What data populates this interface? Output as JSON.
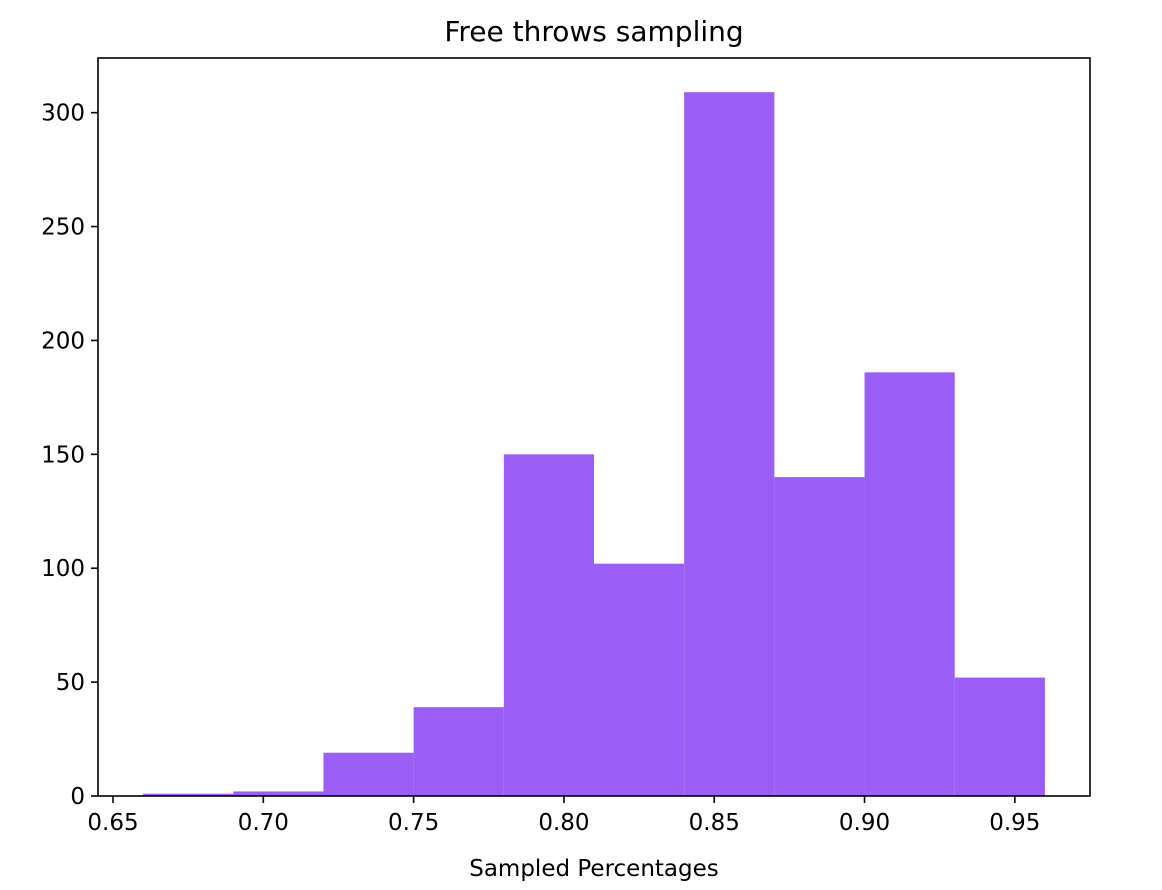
{
  "chart_data": {
    "type": "bar",
    "title": "Free throws sampling",
    "xlabel": "Sampled Percentages",
    "ylabel": "",
    "bins": [
      {
        "start": 0.66,
        "end": 0.69,
        "count": 1
      },
      {
        "start": 0.69,
        "end": 0.72,
        "count": 2
      },
      {
        "start": 0.72,
        "end": 0.75,
        "count": 19
      },
      {
        "start": 0.75,
        "end": 0.78,
        "count": 39
      },
      {
        "start": 0.78,
        "end": 0.81,
        "count": 150
      },
      {
        "start": 0.81,
        "end": 0.84,
        "count": 102
      },
      {
        "start": 0.84,
        "end": 0.87,
        "count": 309
      },
      {
        "start": 0.87,
        "end": 0.9,
        "count": 140
      },
      {
        "start": 0.9,
        "end": 0.93,
        "count": 186
      },
      {
        "start": 0.93,
        "end": 0.96,
        "count": 52
      }
    ],
    "xlim": [
      0.645,
      0.975
    ],
    "ylim": [
      0,
      324
    ],
    "xticks": [
      0.65,
      0.7,
      0.75,
      0.8,
      0.85,
      0.9,
      0.95
    ],
    "xtick_labels": [
      "0.65",
      "0.70",
      "0.75",
      "0.80",
      "0.85",
      "0.90",
      "0.95"
    ],
    "yticks": [
      0,
      50,
      100,
      150,
      200,
      250,
      300
    ],
    "ytick_labels": [
      "0",
      "50",
      "100",
      "150",
      "200",
      "250",
      "300"
    ],
    "bar_color": "#9a5ef6",
    "grid": false,
    "legend": "none"
  }
}
